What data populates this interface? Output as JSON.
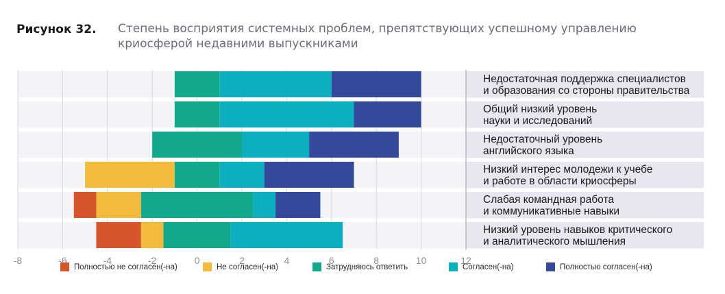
{
  "figure": {
    "label": "Рисунок 32.",
    "title": "Степень восприятия системных проблем, препятствующих успешному управлению криосферой недавними выпускниками"
  },
  "chart_data": {
    "type": "bar",
    "stacked": "diverging",
    "orientation": "horizontal",
    "xlim": [
      -8,
      12
    ],
    "xticks": [
      "-8",
      "-6",
      "-4",
      "-2",
      "0",
      "2",
      "4",
      "6",
      "8",
      "10",
      "12"
    ],
    "grid": true,
    "legend_position": "bottom",
    "categories": [
      [
        "Недостаточная поддержка специалистов",
        "и образования со стороны правительства"
      ],
      [
        "Общий низкий уровень",
        "науки и исследований"
      ],
      [
        "Недостаточный уровень",
        "английского языка"
      ],
      [
        "Низкий интерес молодежи к учебе",
        "и работе в области криосферы"
      ],
      [
        "Слабая командная работа",
        "и коммуникативные навыки"
      ],
      [
        "Низкий уровень навыков критического",
        "и аналитического мышления"
      ]
    ],
    "series": [
      {
        "name": "Полностью не согласен(-на)",
        "color": "#d4562a",
        "values": [
          0,
          0,
          0,
          0,
          1,
          2
        ]
      },
      {
        "name": "Не согласен(-на)",
        "color": "#f2bb3c",
        "values": [
          0,
          0,
          0,
          4,
          2,
          1
        ]
      },
      {
        "name": "Затрудняюсь ответить",
        "color": "#12a98a",
        "values": [
          2,
          2,
          4,
          2,
          5,
          3
        ]
      },
      {
        "name": "Согласен(-на)",
        "color": "#0bafbf",
        "values": [
          5,
          6,
          3,
          2,
          1,
          5
        ]
      },
      {
        "name": "Полностью согласен(-на)",
        "color": "#35499b",
        "values": [
          4,
          3,
          4,
          4,
          2,
          0
        ]
      }
    ]
  }
}
